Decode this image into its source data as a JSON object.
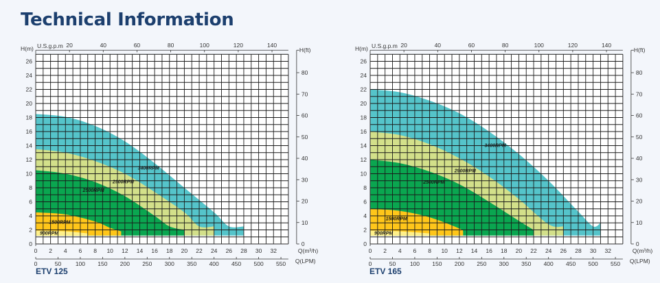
{
  "page": {
    "title": "Technical Information"
  },
  "axis_labels": {
    "h_m": "H(m)",
    "h_ft": "H(ft)",
    "usgpm": "U.S.g.p.m",
    "q_m3h": "Q(m³/h)",
    "q_lpm": "Q(LPM)"
  },
  "colors": {
    "rpm3400": "#55c4ca",
    "rpm2900": "#d3e08a",
    "rpm2500": "#0aa650",
    "rpm1500": "#ffc61a",
    "rpm900": "#fff08a",
    "title": "#1c3f6e",
    "grid": "#1a1a1a"
  },
  "chart_data": [
    {
      "model": "ETV 125",
      "type": "area",
      "xlabel": "Q(m³/h)",
      "ylabel": "H(m)",
      "secondary_y_label": "H(ft)",
      "top_x_label": "U.S.g.p.m",
      "bottom_x2_label": "Q(LPM)",
      "xlim": [
        0,
        34
      ],
      "ylim": [
        0,
        27
      ],
      "grid": true,
      "x_ticks": [
        0,
        2,
        4,
        6,
        8,
        10,
        12,
        14,
        16,
        18,
        20,
        22,
        24,
        26,
        28,
        30,
        32
      ],
      "y_ticks": [
        0,
        2,
        4,
        6,
        8,
        10,
        12,
        14,
        16,
        18,
        20,
        22,
        24,
        26
      ],
      "usgpm_ticks": [
        20,
        40,
        60,
        80,
        100,
        120,
        140
      ],
      "ft_ticks": [
        0,
        10,
        20,
        30,
        40,
        50,
        60,
        70,
        80
      ],
      "lpm_ticks": [
        0,
        50,
        100,
        150,
        200,
        250,
        300,
        350,
        400,
        450,
        500,
        550
      ],
      "series": [
        {
          "name": "3400RPM",
          "x": [
            0,
            4,
            8,
            12,
            16,
            20,
            24,
            26,
            28
          ],
          "y": [
            18.5,
            18.1,
            16.8,
            14.6,
            11.5,
            8,
            4.5,
            2.5,
            2.5
          ]
        },
        {
          "name": "2900RPM",
          "x": [
            0,
            4,
            8,
            12,
            16,
            20,
            22,
            24
          ],
          "y": [
            13.5,
            13,
            11.8,
            10,
            7.4,
            4.5,
            2.5,
            2.5
          ]
        },
        {
          "name": "2500RPM",
          "x": [
            0,
            4,
            8,
            12,
            16,
            18,
            20
          ],
          "y": [
            10.5,
            10,
            8.8,
            6.8,
            4,
            2.5,
            2
          ]
        },
        {
          "name": "1500RPM",
          "x": [
            0,
            4,
            8,
            10,
            11.5
          ],
          "y": [
            4.5,
            4.2,
            3.2,
            2.3,
            1.8
          ]
        },
        {
          "name": "900RPM",
          "x": [
            0,
            4,
            7
          ],
          "y": [
            1.9,
            1.8,
            1.5
          ]
        }
      ]
    },
    {
      "model": "ETV 165",
      "type": "area",
      "xlabel": "Q(m³/h)",
      "ylabel": "H(m)",
      "secondary_y_label": "H(ft)",
      "top_x_label": "U.S.g.p.m",
      "bottom_x2_label": "Q(LPM)",
      "xlim": [
        0,
        34
      ],
      "ylim": [
        0,
        27
      ],
      "grid": true,
      "x_ticks": [
        0,
        2,
        4,
        6,
        8,
        10,
        12,
        14,
        16,
        18,
        20,
        22,
        24,
        26,
        28,
        30,
        32
      ],
      "y_ticks": [
        0,
        2,
        4,
        6,
        8,
        10,
        12,
        14,
        16,
        18,
        20,
        22,
        24,
        26
      ],
      "usgpm_ticks": [
        20,
        40,
        60,
        80,
        100,
        120,
        140
      ],
      "ft_ticks": [
        0,
        10,
        20,
        30,
        40,
        50,
        60,
        70,
        80
      ],
      "lpm_ticks": [
        0,
        50,
        100,
        150,
        200,
        250,
        300,
        350,
        400,
        450,
        500,
        550
      ],
      "series": [
        {
          "name": "3400RPM",
          "x": [
            0,
            4,
            8,
            12,
            16,
            20,
            24,
            28,
            30,
            31
          ],
          "y": [
            22,
            21.6,
            20.4,
            18.6,
            16,
            12.8,
            9,
            4.6,
            2.5,
            3
          ]
        },
        {
          "name": "2900RPM",
          "x": [
            0,
            4,
            8,
            12,
            16,
            20,
            24,
            26
          ],
          "y": [
            16,
            15.5,
            14.2,
            12.2,
            9.6,
            6.4,
            2.8,
            2.5
          ]
        },
        {
          "name": "2500RPM",
          "x": [
            0,
            4,
            8,
            12,
            16,
            20,
            22
          ],
          "y": [
            12,
            11.5,
            10.3,
            8.5,
            6,
            3.3,
            2
          ]
        },
        {
          "name": "1500RPM",
          "x": [
            0,
            4,
            8,
            12,
            12.5
          ],
          "y": [
            5,
            4.7,
            3.8,
            2.2,
            1.8
          ]
        },
        {
          "name": "900RPM",
          "x": [
            0,
            4,
            8
          ],
          "y": [
            1.9,
            1.8,
            1.5
          ]
        }
      ]
    }
  ]
}
